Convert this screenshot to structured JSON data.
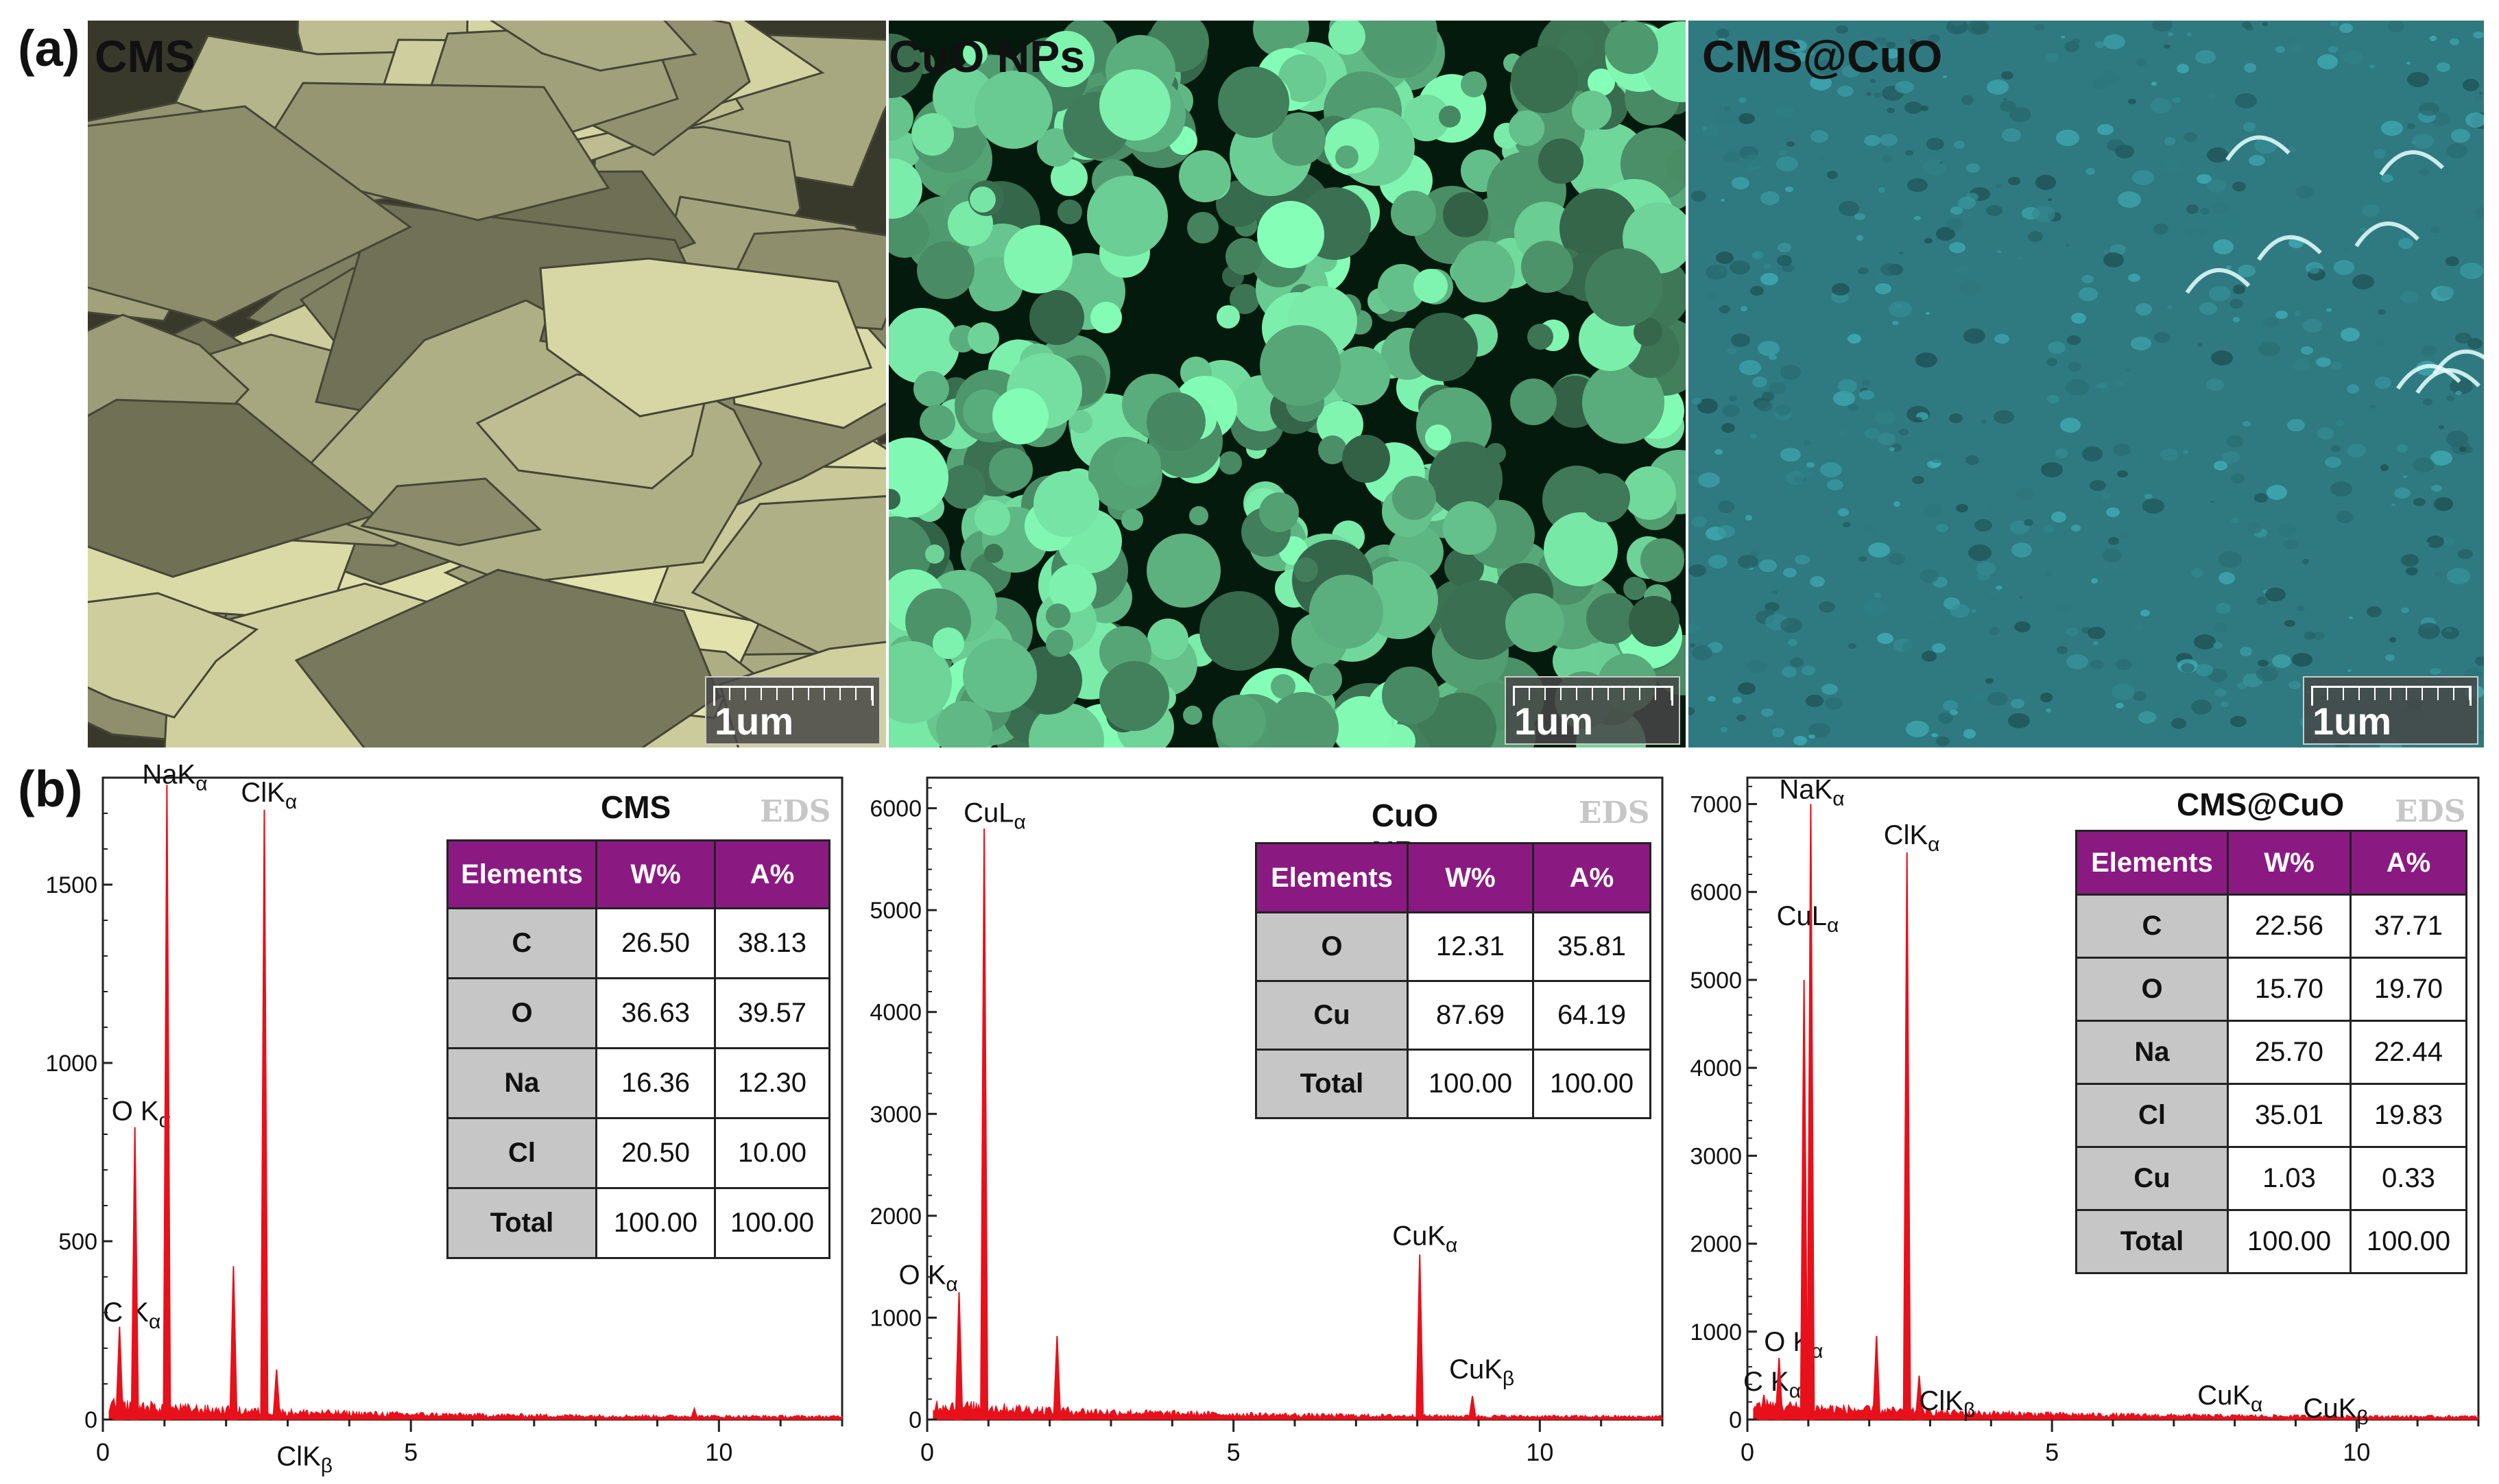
{
  "figure_labels": {
    "a": "(a)",
    "b": "(b)"
  },
  "sem_images": [
    {
      "title": "CMS",
      "scale_label": "1um",
      "tint": "#c9c99a"
    },
    {
      "title": "CuO NPs",
      "scale_label": "1um",
      "tint": "#6fd69a"
    },
    {
      "title": "CMS@CuO",
      "scale_label": "1um",
      "tint": "#2e7a80"
    }
  ],
  "colors": {
    "spectrum": "#e8101a",
    "table_header": "#8a1a82",
    "element_cell": "#c6c6c6"
  },
  "chart_data": [
    {
      "type": "bar",
      "title": "CMS",
      "tag": "EDS",
      "xlabel": "",
      "ylabel": "",
      "xlim": [
        0,
        12
      ],
      "ylim": [
        0,
        1800
      ],
      "x_ticks": [
        0,
        5,
        10
      ],
      "y_ticks": [
        0,
        500,
        1000,
        1500
      ],
      "peaks": [
        {
          "label": "C",
          "sub": "Kα",
          "x": 0.27,
          "y": 260
        },
        {
          "label": "O",
          "sub": "Kα",
          "x": 0.52,
          "y": 820
        },
        {
          "label": "NaK",
          "sub": "α",
          "x": 1.04,
          "y": 1780
        },
        {
          "label": "",
          "sub": "",
          "x": 2.12,
          "y": 430
        },
        {
          "label": "ClK",
          "sub": "α",
          "x": 2.62,
          "y": 1710
        },
        {
          "label": "ClK",
          "sub": "β",
          "x": 2.82,
          "y": 140
        },
        {
          "label": "",
          "sub": "",
          "x": 9.6,
          "y": 30
        }
      ],
      "table": {
        "headers": [
          "Elements",
          "W%",
          "A%"
        ],
        "rows": [
          [
            "C",
            "26.50",
            "38.13"
          ],
          [
            "O",
            "36.63",
            "39.57"
          ],
          [
            "Na",
            "16.36",
            "12.30"
          ],
          [
            "Cl",
            "20.50",
            "10.00"
          ],
          [
            "Total",
            "100.00",
            "100.00"
          ]
        ]
      }
    },
    {
      "type": "bar",
      "title": "CuO NPs",
      "tag": "EDS",
      "xlabel": "",
      "ylabel": "",
      "xlim": [
        0,
        12
      ],
      "ylim": [
        0,
        6300
      ],
      "x_ticks": [
        0,
        5,
        10
      ],
      "y_ticks": [
        0,
        1000,
        2000,
        3000,
        4000,
        5000,
        6000
      ],
      "peaks": [
        {
          "label": "O",
          "sub": "Kα",
          "x": 0.52,
          "y": 1250
        },
        {
          "label": "CuL",
          "sub": "α",
          "x": 0.93,
          "y": 5800
        },
        {
          "label": "",
          "sub": "",
          "x": 2.12,
          "y": 820
        },
        {
          "label": "CuK",
          "sub": "α",
          "x": 8.04,
          "y": 1620
        },
        {
          "label": "CuK",
          "sub": "β",
          "x": 8.9,
          "y": 230
        }
      ],
      "table": {
        "headers": [
          "Elements",
          "W%",
          "A%"
        ],
        "rows": [
          [
            "O",
            "12.31",
            "35.81"
          ],
          [
            "Cu",
            "87.69",
            "64.19"
          ],
          [
            "Total",
            "100.00",
            "100.00"
          ]
        ]
      }
    },
    {
      "type": "bar",
      "title": "CMS@CuO",
      "tag": "EDS",
      "xlabel": "",
      "ylabel": "",
      "xlim": [
        0,
        12
      ],
      "ylim": [
        0,
        7300
      ],
      "x_ticks": [
        0,
        5,
        10
      ],
      "y_ticks": [
        0,
        1000,
        2000,
        3000,
        4000,
        5000,
        6000,
        7000
      ],
      "peaks": [
        {
          "label": "C",
          "sub": "Kα",
          "x": 0.27,
          "y": 280
        },
        {
          "label": "O",
          "sub": "Kα",
          "x": 0.52,
          "y": 700
        },
        {
          "label": "CuL",
          "sub": "α",
          "x": 0.93,
          "y": 5000
        },
        {
          "label": "NaK",
          "sub": "α",
          "x": 1.04,
          "y": 7000
        },
        {
          "label": "",
          "sub": "",
          "x": 2.12,
          "y": 950
        },
        {
          "label": "ClK",
          "sub": "α",
          "x": 2.62,
          "y": 6450
        },
        {
          "label": "ClK",
          "sub": "β",
          "x": 2.82,
          "y": 500
        },
        {
          "label": "CuK",
          "sub": "α",
          "x": 8.04,
          "y": 30
        },
        {
          "label": "CuK",
          "sub": "β",
          "x": 8.9,
          "y": 25
        }
      ],
      "table": {
        "headers": [
          "Elements",
          "W%",
          "A%"
        ],
        "rows": [
          [
            "C",
            "22.56",
            "37.71"
          ],
          [
            "O",
            "15.70",
            "19.70"
          ],
          [
            "Na",
            "25.70",
            "22.44"
          ],
          [
            "Cl",
            "35.01",
            "19.83"
          ],
          [
            "Cu",
            "1.03",
            "0.33"
          ],
          [
            "Total",
            "100.00",
            "100.00"
          ]
        ]
      }
    }
  ]
}
